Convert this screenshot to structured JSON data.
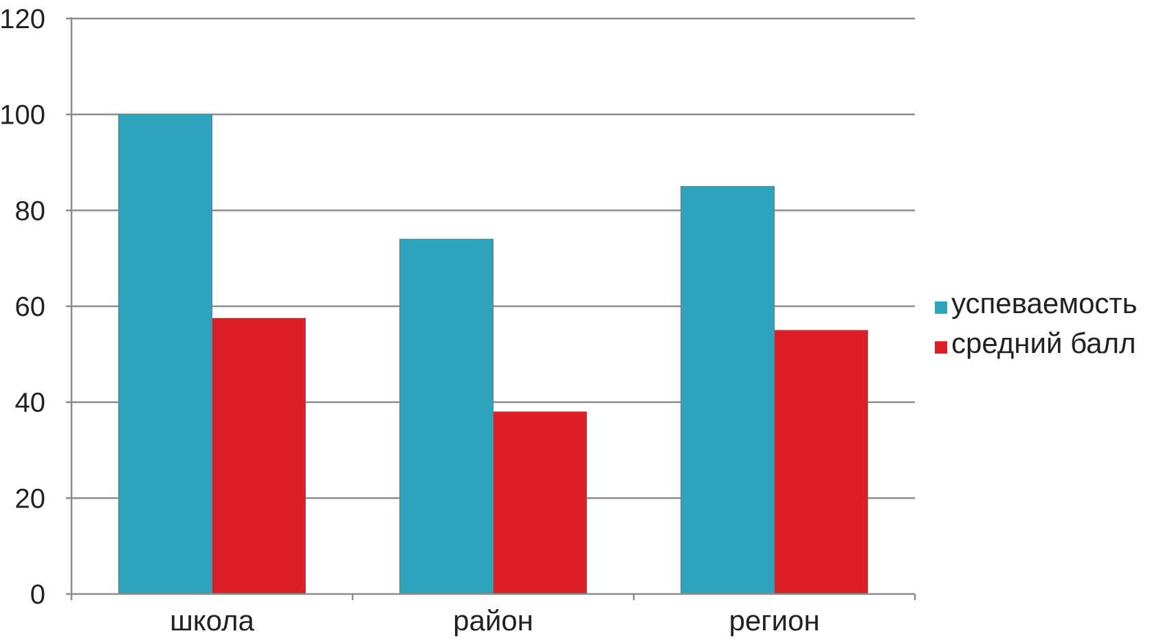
{
  "chart_data": {
    "type": "bar",
    "categories": [
      "школа",
      "район",
      "регион"
    ],
    "series": [
      {
        "name": "успеваемость",
        "color": "#2ea3be",
        "values": [
          100,
          74,
          85
        ]
      },
      {
        "name": "средний балл",
        "color": "#dc1f26",
        "values": [
          57.5,
          38,
          55
        ]
      }
    ],
    "ylim": [
      0,
      120
    ],
    "yticks": [
      0,
      20,
      40,
      60,
      80,
      100,
      120
    ],
    "grid": true,
    "legend": "right",
    "gridline_color": "#8c8c8c",
    "axis_color": "#8c8c8c"
  }
}
